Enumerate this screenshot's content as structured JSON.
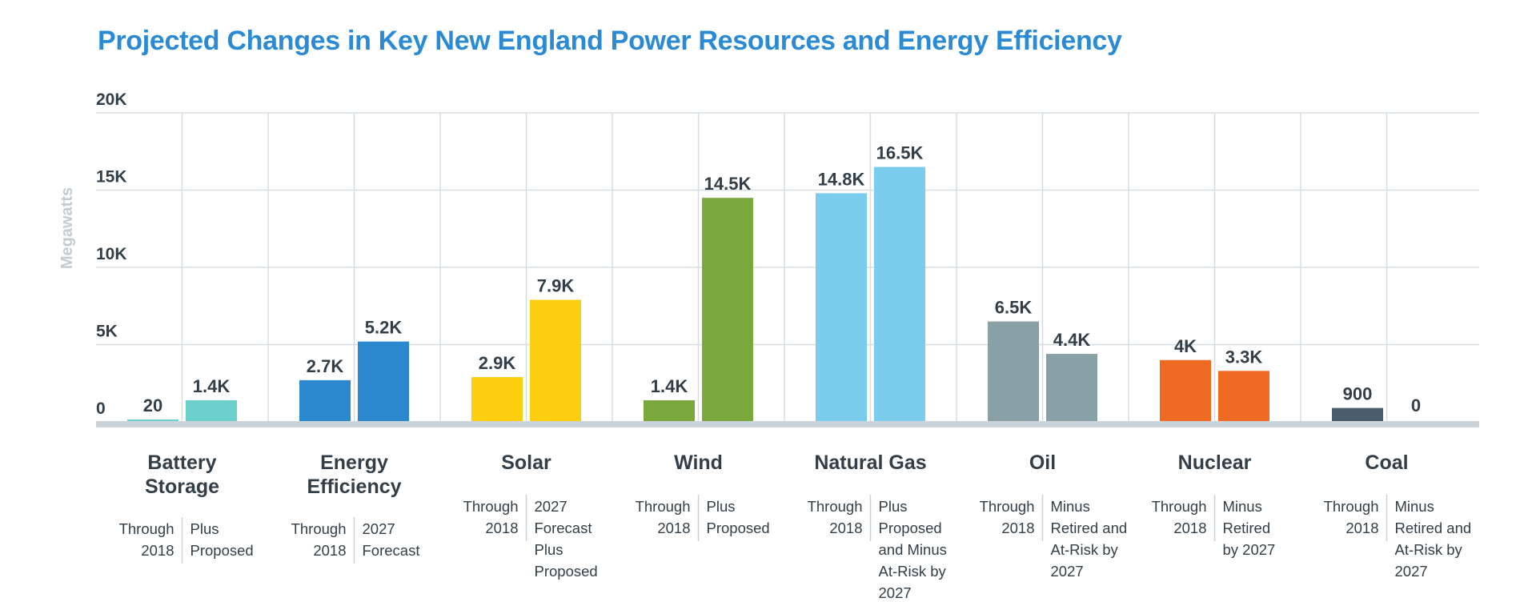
{
  "title": "Projected Changes in Key New England Power Resources and Energy Efficiency",
  "chart_data": {
    "type": "bar",
    "title": "Projected Changes in Key New England Power Resources and Energy Efficiency",
    "ylabel": "Megawatts",
    "ylim": [
      0,
      20000
    ],
    "yticks": [
      {
        "value": 0,
        "label": "0"
      },
      {
        "value": 5000,
        "label": "5K"
      },
      {
        "value": 10000,
        "label": "10K"
      },
      {
        "value": 15000,
        "label": "15K"
      },
      {
        "value": 20000,
        "label": "20K"
      }
    ],
    "grid": true,
    "categories": [
      {
        "name": [
          "Battery",
          "Storage"
        ],
        "bars": [
          {
            "value": 20,
            "label": "20",
            "color": "#6ccfcc",
            "sub": [
              "Through",
              "2018"
            ]
          },
          {
            "value": 1400,
            "label": "1.4K",
            "color": "#6ccfcc",
            "sub": [
              "Plus",
              "Proposed"
            ]
          }
        ]
      },
      {
        "name": [
          "Energy",
          "Efficiency"
        ],
        "bars": [
          {
            "value": 2700,
            "label": "2.7K",
            "color": "#2b88cf",
            "sub": [
              "Through",
              "2018"
            ]
          },
          {
            "value": 5200,
            "label": "5.2K",
            "color": "#2b88cf",
            "sub": [
              "2027",
              "Forecast"
            ]
          }
        ]
      },
      {
        "name": [
          "Solar"
        ],
        "bars": [
          {
            "value": 2900,
            "label": "2.9K",
            "color": "#fcce10",
            "sub": [
              "Through",
              "2018"
            ]
          },
          {
            "value": 7900,
            "label": "7.9K",
            "color": "#fcce10",
            "sub": [
              "2027",
              "Forecast",
              "Plus",
              "Proposed"
            ]
          }
        ]
      },
      {
        "name": [
          "Wind"
        ],
        "bars": [
          {
            "value": 1400,
            "label": "1.4K",
            "color": "#7aa83d",
            "sub": [
              "Through",
              "2018"
            ]
          },
          {
            "value": 14500,
            "label": "14.5K",
            "color": "#7aa83d",
            "sub": [
              "Plus",
              "Proposed"
            ]
          }
        ]
      },
      {
        "name": [
          "Natural Gas"
        ],
        "bars": [
          {
            "value": 14800,
            "label": "14.8K",
            "color": "#7acdec",
            "sub": [
              "Through",
              "2018"
            ]
          },
          {
            "value": 16500,
            "label": "16.5K",
            "color": "#7acdec",
            "sub": [
              "Plus",
              "Proposed",
              "and Minus",
              "At-Risk by",
              "2027"
            ]
          }
        ]
      },
      {
        "name": [
          "Oil"
        ],
        "bars": [
          {
            "value": 6500,
            "label": "6.5K",
            "color": "#87a1a6",
            "sub": [
              "Through",
              "2018"
            ]
          },
          {
            "value": 4400,
            "label": "4.4K",
            "color": "#87a1a6",
            "sub": [
              "Minus",
              "Retired and",
              "At-Risk by",
              "2027"
            ]
          }
        ]
      },
      {
        "name": [
          "Nuclear"
        ],
        "bars": [
          {
            "value": 4000,
            "label": "4K",
            "color": "#ef6b24",
            "sub": [
              "Through",
              "2018"
            ]
          },
          {
            "value": 3300,
            "label": "3.3K",
            "color": "#ef6b24",
            "sub": [
              "Minus",
              "Retired",
              "by 2027"
            ]
          }
        ]
      },
      {
        "name": [
          "Coal"
        ],
        "bars": [
          {
            "value": 900,
            "label": "900",
            "color": "#4a5d6b",
            "sub": [
              "Through",
              "2018"
            ]
          },
          {
            "value": 0,
            "label": "0",
            "color": "#4a5d6b",
            "sub": [
              "Minus",
              "Retired and",
              "At-Risk by",
              "2027"
            ]
          }
        ]
      }
    ]
  }
}
